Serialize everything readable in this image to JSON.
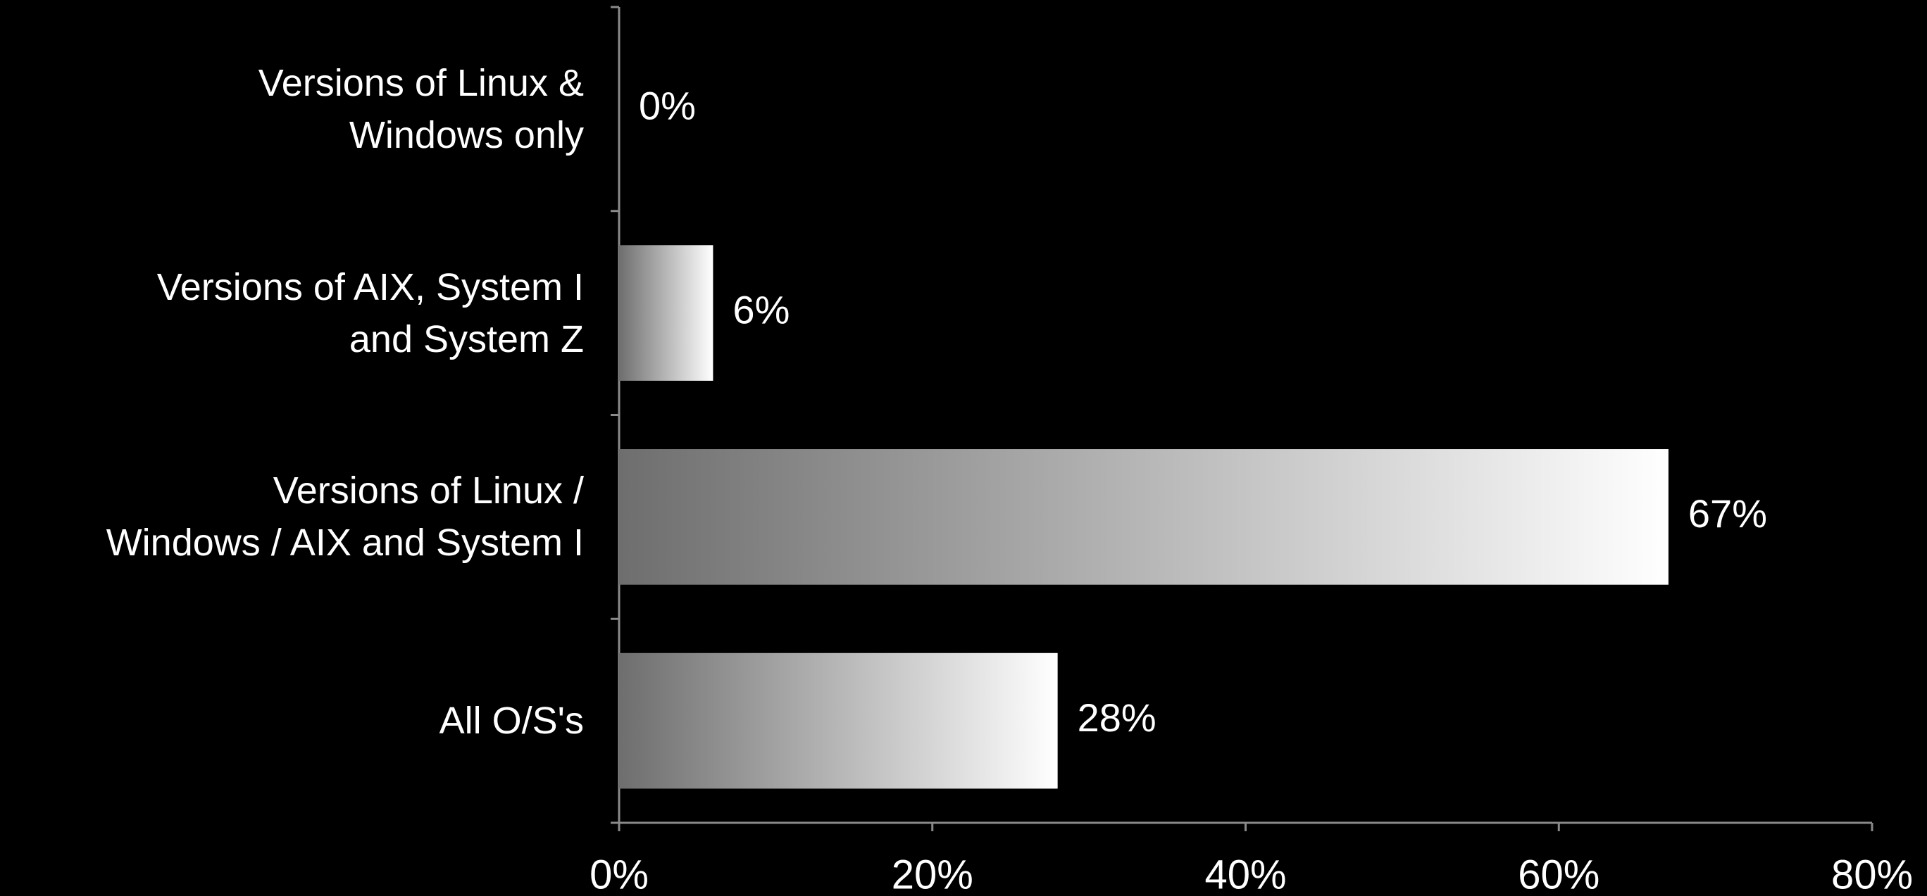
{
  "chart_data": {
    "type": "bar",
    "orientation": "horizontal",
    "categories": [
      "Versions of Linux &\nWindows only",
      "Versions of AIX, System I\nand System Z",
      "Versions of Linux /\nWindows / AIX and System I",
      "All O/S's"
    ],
    "values": [
      0,
      6,
      67,
      28
    ],
    "value_labels": [
      "0%",
      "6%",
      "67%",
      "28%"
    ],
    "gradient": [
      "#6e6e6e",
      "#ffffff"
    ],
    "xlim": [
      0,
      80
    ],
    "xticks": [
      {
        "value": 0,
        "label": "0%"
      },
      {
        "value": 20,
        "label": "20%"
      },
      {
        "value": 40,
        "label": "40%"
      },
      {
        "value": 60,
        "label": "60%"
      },
      {
        "value": 80,
        "label": "80%"
      }
    ],
    "grid": false
  }
}
